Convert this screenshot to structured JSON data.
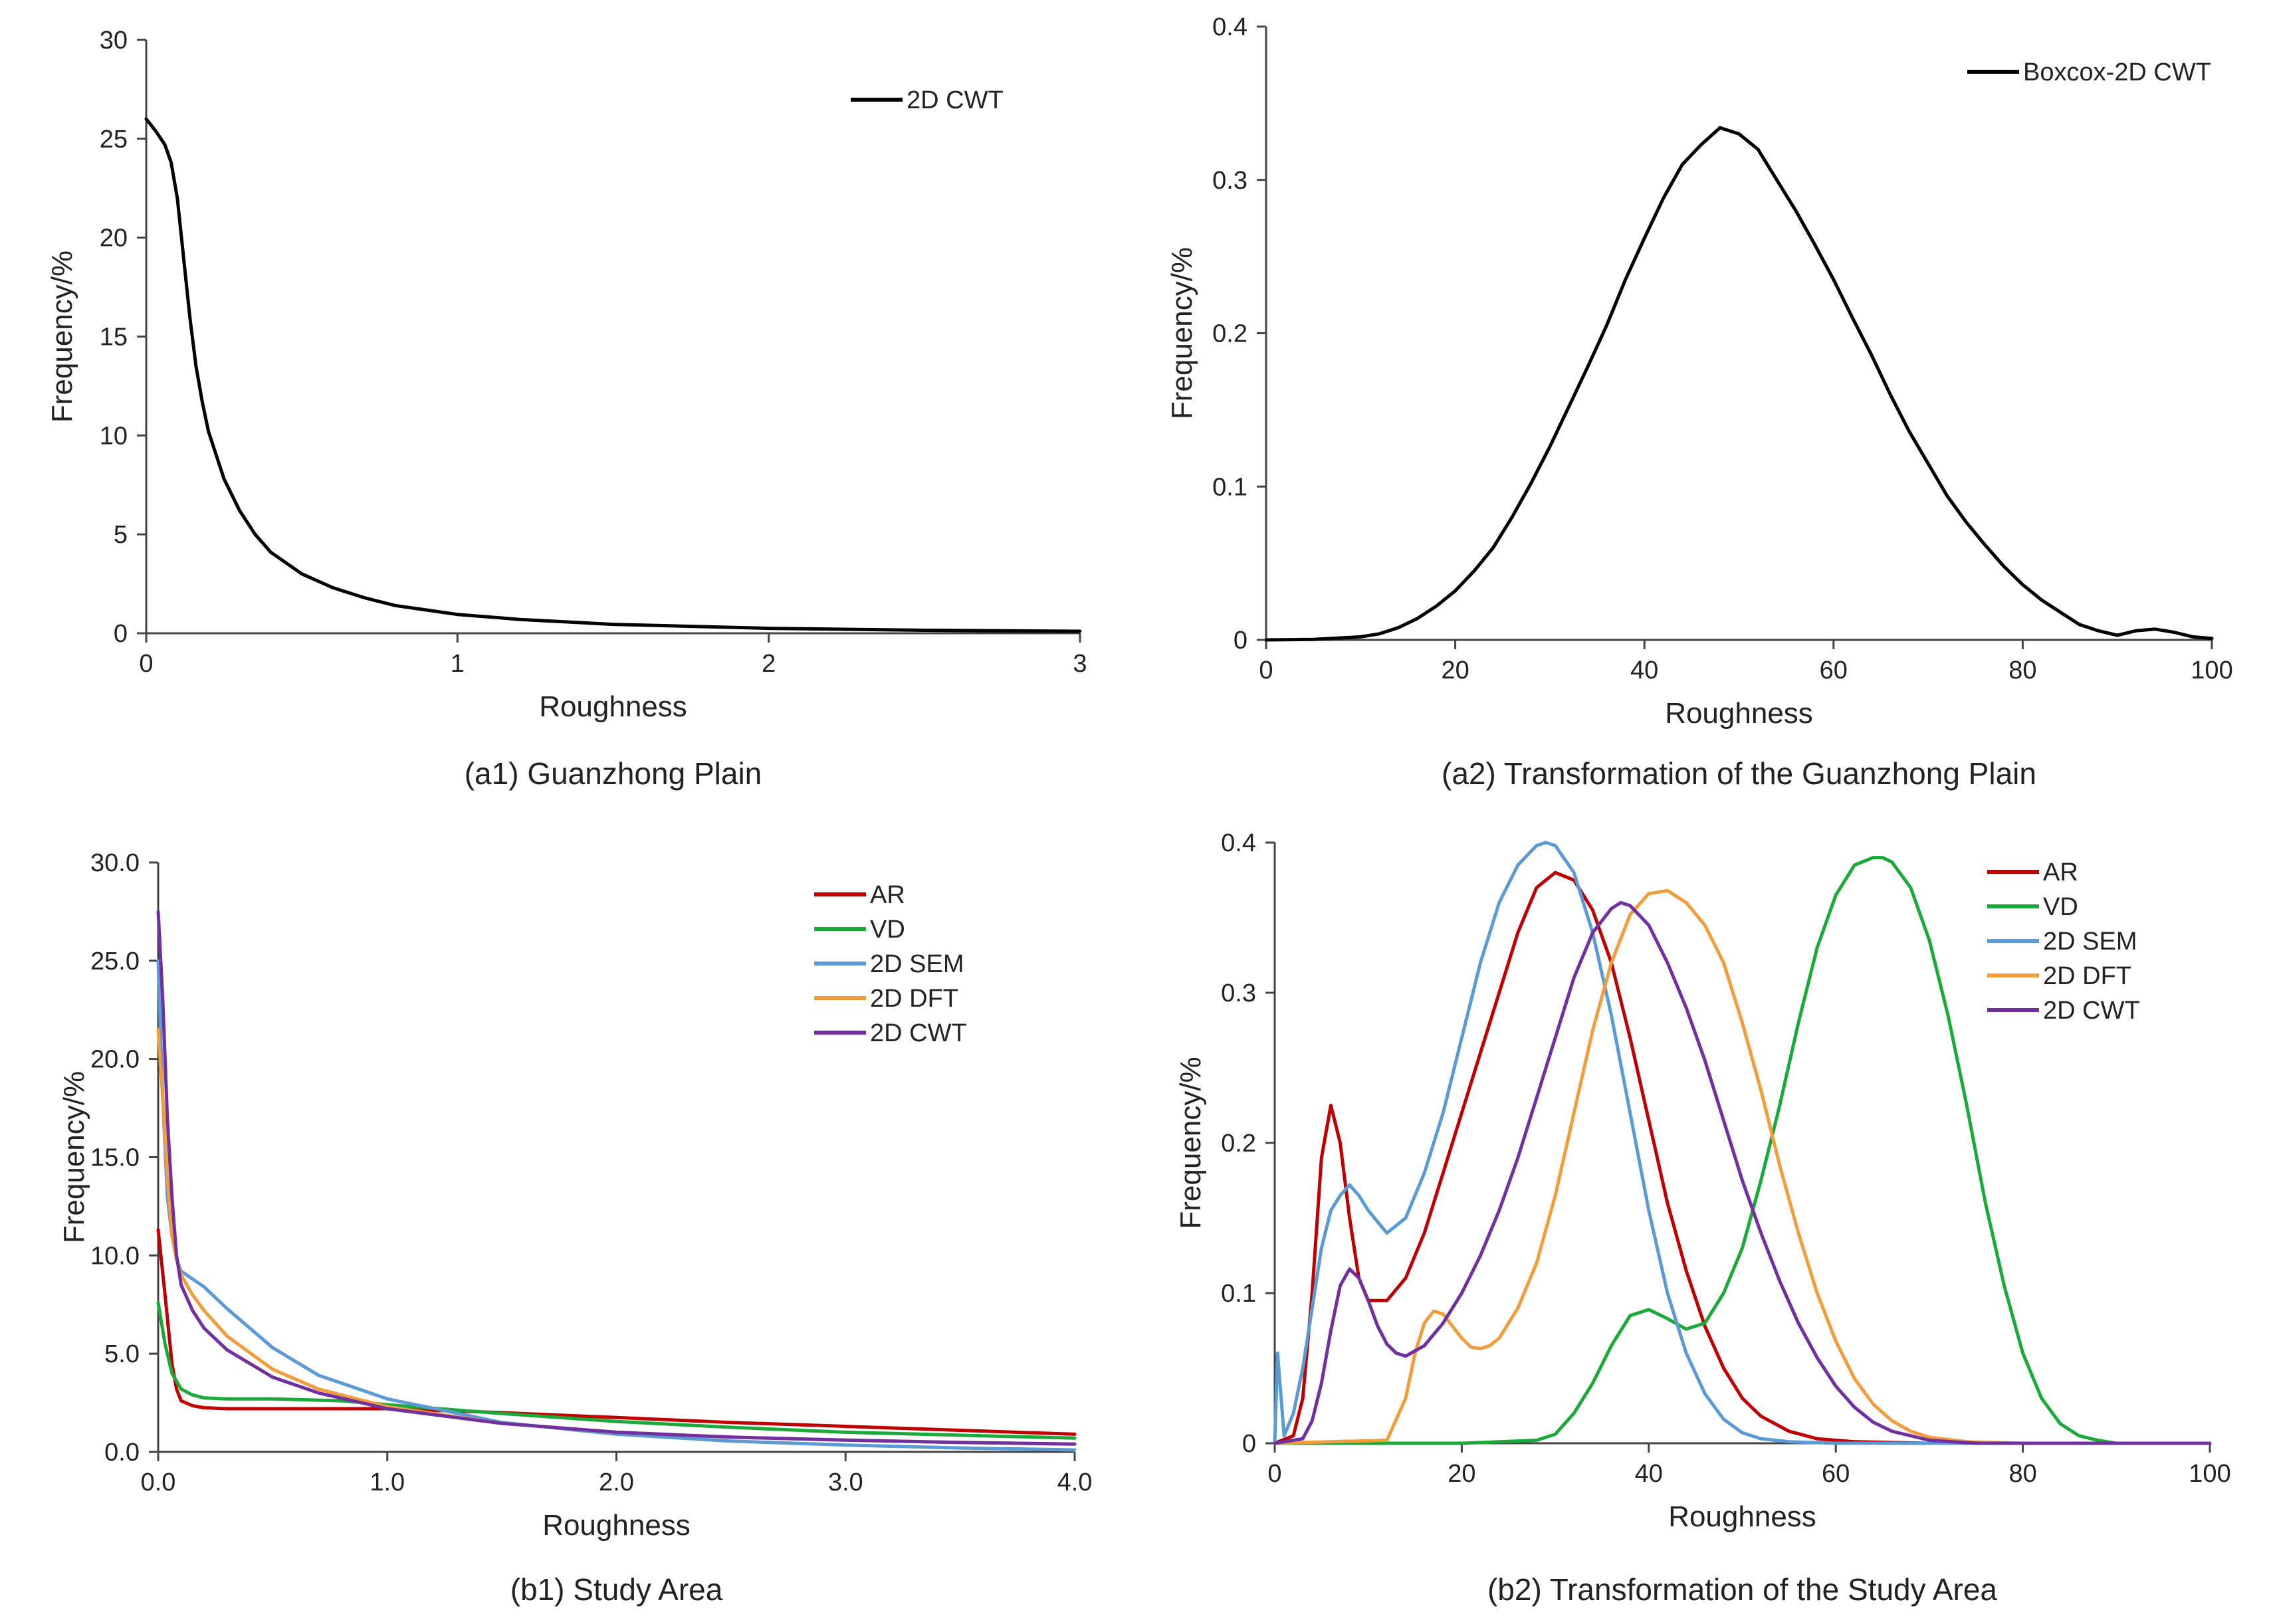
{
  "chart_data": [
    {
      "id": "a1",
      "type": "line",
      "caption": "(a1) Guanzhong Plain",
      "xlabel": "Roughness",
      "ylabel": "Frequency/%",
      "xlim": [
        0,
        3
      ],
      "ylim": [
        0,
        30
      ],
      "xticks": [
        "0",
        "1",
        "2",
        "3"
      ],
      "xtick_values": [
        0,
        1,
        2,
        3
      ],
      "yticks": [
        "0",
        "5",
        "10",
        "15",
        "20",
        "25",
        "30"
      ],
      "ytick_values": [
        0,
        5,
        10,
        15,
        20,
        25,
        30
      ],
      "legend_position": "top-right",
      "series": [
        {
          "name": "2D CWT",
          "color": "#000000",
          "x": [
            0,
            0.03,
            0.06,
            0.08,
            0.1,
            0.12,
            0.14,
            0.16,
            0.18,
            0.2,
            0.25,
            0.3,
            0.35,
            0.4,
            0.5,
            0.6,
            0.7,
            0.8,
            1.0,
            1.2,
            1.5,
            2.0,
            2.5,
            3.0
          ],
          "y": [
            26,
            25.4,
            24.7,
            23.8,
            22,
            19,
            16,
            13.5,
            11.7,
            10.2,
            7.8,
            6.2,
            5.0,
            4.1,
            3.0,
            2.3,
            1.8,
            1.4,
            0.95,
            0.7,
            0.45,
            0.25,
            0.15,
            0.1
          ]
        }
      ]
    },
    {
      "id": "a2",
      "type": "line",
      "caption": "(a2) Transformation of the Guanzhong Plain",
      "xlabel": "Roughness",
      "ylabel": "Frequency/%",
      "xlim": [
        0,
        100
      ],
      "ylim": [
        0,
        0.4
      ],
      "xticks": [
        "0",
        "20",
        "40",
        "60",
        "80",
        "100"
      ],
      "xtick_values": [
        0,
        20,
        40,
        60,
        80,
        100
      ],
      "yticks": [
        "0",
        "0.1",
        "0.2",
        "0.3",
        "0.4"
      ],
      "ytick_values": [
        0,
        0.1,
        0.2,
        0.3,
        0.4
      ],
      "legend_position": "top-right",
      "series": [
        {
          "name": "Boxcox-2D CWT",
          "color": "#000000",
          "x": [
            0,
            5,
            10,
            12,
            14,
            16,
            18,
            20,
            22,
            24,
            26,
            28,
            30,
            32,
            34,
            36,
            38,
            40,
            42,
            44,
            46,
            48,
            50,
            52,
            54,
            56,
            58,
            60,
            62,
            64,
            66,
            68,
            70,
            72,
            74,
            76,
            78,
            80,
            82,
            84,
            86,
            88,
            90,
            92,
            94,
            96,
            98,
            100
          ],
          "y": [
            0,
            0.0003,
            0.002,
            0.004,
            0.008,
            0.014,
            0.022,
            0.032,
            0.045,
            0.06,
            0.08,
            0.102,
            0.126,
            0.152,
            0.178,
            0.205,
            0.235,
            0.262,
            0.288,
            0.31,
            0.323,
            0.334,
            0.33,
            0.32,
            0.3,
            0.28,
            0.258,
            0.235,
            0.21,
            0.186,
            0.16,
            0.136,
            0.115,
            0.094,
            0.077,
            0.062,
            0.048,
            0.036,
            0.026,
            0.018,
            0.01,
            0.006,
            0.003,
            0.006,
            0.007,
            0.005,
            0.002,
            0.001
          ]
        }
      ]
    },
    {
      "id": "b1",
      "type": "line",
      "caption": "(b1) Study Area",
      "xlabel": "Roughness",
      "ylabel": "Frequency/%",
      "xlim": [
        0,
        4
      ],
      "ylim": [
        0,
        30
      ],
      "xticks": [
        "0.0",
        "1.0",
        "2.0",
        "3.0",
        "4.0"
      ],
      "xtick_values": [
        0,
        1,
        2,
        3,
        4
      ],
      "yticks": [
        "0.0",
        "5.0",
        "10.0",
        "15.0",
        "20.0",
        "25.0",
        "30.0"
      ],
      "ytick_values": [
        0,
        5,
        10,
        15,
        20,
        25,
        30
      ],
      "legend_position": "top-right",
      "series": [
        {
          "name": "AR",
          "color": "#C00000",
          "x": [
            0,
            0.03,
            0.06,
            0.08,
            0.1,
            0.15,
            0.2,
            0.3,
            0.5,
            0.8,
            1.0,
            1.5,
            2.0,
            2.5,
            3.0,
            3.5,
            4.0
          ],
          "y": [
            11.3,
            8,
            4.5,
            3.2,
            2.6,
            2.35,
            2.25,
            2.2,
            2.2,
            2.2,
            2.2,
            2.0,
            1.75,
            1.5,
            1.3,
            1.1,
            0.9
          ]
        },
        {
          "name": "VD",
          "color": "#1AAA3A",
          "x": [
            0,
            0.03,
            0.06,
            0.1,
            0.15,
            0.2,
            0.3,
            0.5,
            0.8,
            1.0,
            1.5,
            2.0,
            2.5,
            3.0,
            3.5,
            4.0
          ],
          "y": [
            7.6,
            5.5,
            4.0,
            3.2,
            2.9,
            2.75,
            2.7,
            2.7,
            2.6,
            2.4,
            1.95,
            1.55,
            1.25,
            1.0,
            0.85,
            0.7
          ]
        },
        {
          "name": "2D SEM",
          "color": "#5B9BD5",
          "x": [
            0,
            0.02,
            0.04,
            0.06,
            0.08,
            0.1,
            0.15,
            0.2,
            0.3,
            0.5,
            0.7,
            1.0,
            1.5,
            2.0,
            2.5,
            3.0,
            3.5,
            4.0
          ],
          "y": [
            25,
            18,
            13,
            11,
            9.8,
            9.2,
            8.8,
            8.4,
            7.3,
            5.3,
            3.9,
            2.7,
            1.5,
            0.9,
            0.55,
            0.35,
            0.2,
            0.1
          ]
        },
        {
          "name": "2D DFT",
          "color": "#F39C3C",
          "x": [
            0,
            0.02,
            0.04,
            0.06,
            0.08,
            0.1,
            0.15,
            0.2,
            0.3,
            0.5,
            0.7,
            1.0,
            1.5,
            2.0,
            2.5,
            3.0,
            3.5,
            4.0
          ],
          "y": [
            21.5,
            18,
            14,
            11,
            9.8,
            9.0,
            8.0,
            7.2,
            5.9,
            4.2,
            3.2,
            2.3,
            1.45,
            1.0,
            0.75,
            0.6,
            0.48,
            0.4
          ]
        },
        {
          "name": "2D CWT",
          "color": "#7030A0",
          "x": [
            0,
            0.02,
            0.04,
            0.06,
            0.08,
            0.1,
            0.15,
            0.2,
            0.3,
            0.5,
            0.7,
            1.0,
            1.5,
            2.0,
            2.5,
            3.0,
            3.5,
            4.0
          ],
          "y": [
            27.5,
            23,
            17,
            13,
            10,
            8.5,
            7.2,
            6.3,
            5.2,
            3.8,
            3.0,
            2.2,
            1.45,
            1.0,
            0.75,
            0.6,
            0.48,
            0.4
          ]
        }
      ]
    },
    {
      "id": "b2",
      "type": "line",
      "caption": "(b2) Transformation of the Study Area",
      "xlabel": "Roughness",
      "ylabel": "Frequency/%",
      "xlim": [
        0,
        100
      ],
      "ylim": [
        0,
        0.4
      ],
      "xticks": [
        "0",
        "20",
        "40",
        "60",
        "80",
        "100"
      ],
      "xtick_values": [
        0,
        20,
        40,
        60,
        80,
        100
      ],
      "yticks": [
        "0",
        "0.1",
        "0.2",
        "0.3",
        "0.4"
      ],
      "ytick_values": [
        0,
        0.1,
        0.2,
        0.3,
        0.4
      ],
      "legend_position": "top-right",
      "series": [
        {
          "name": "AR",
          "color": "#C00000",
          "x": [
            0,
            2,
            3,
            4,
            5,
            6,
            7,
            8,
            9,
            10,
            12,
            14,
            16,
            18,
            20,
            22,
            24,
            26,
            28,
            30,
            32,
            34,
            36,
            38,
            40,
            42,
            44,
            46,
            48,
            50,
            52,
            55,
            58,
            62,
            70,
            100
          ],
          "y": [
            0,
            0.005,
            0.03,
            0.1,
            0.19,
            0.225,
            0.2,
            0.15,
            0.11,
            0.095,
            0.095,
            0.11,
            0.14,
            0.18,
            0.22,
            0.26,
            0.3,
            0.34,
            0.37,
            0.38,
            0.375,
            0.355,
            0.32,
            0.27,
            0.215,
            0.16,
            0.115,
            0.078,
            0.05,
            0.03,
            0.018,
            0.008,
            0.003,
            0.001,
            0,
            0
          ]
        },
        {
          "name": "VD",
          "color": "#1AAA3A",
          "x": [
            0,
            20,
            28,
            30,
            32,
            34,
            36,
            38,
            40,
            42,
            44,
            46,
            48,
            50,
            52,
            54,
            56,
            58,
            60,
            62,
            64,
            65,
            66,
            68,
            70,
            72,
            74,
            76,
            78,
            80,
            82,
            84,
            86,
            88,
            90,
            100
          ],
          "y": [
            0,
            0,
            0.002,
            0.006,
            0.02,
            0.04,
            0.065,
            0.085,
            0.089,
            0.083,
            0.076,
            0.08,
            0.1,
            0.13,
            0.175,
            0.225,
            0.28,
            0.33,
            0.365,
            0.385,
            0.39,
            0.39,
            0.387,
            0.37,
            0.335,
            0.285,
            0.225,
            0.16,
            0.105,
            0.06,
            0.03,
            0.013,
            0.005,
            0.002,
            0,
            0
          ]
        },
        {
          "name": "2D SEM",
          "color": "#5B9BD5",
          "x": [
            0,
            0.3,
            1,
            2,
            3,
            4,
            5,
            6,
            7,
            8,
            9,
            10,
            12,
            14,
            16,
            18,
            20,
            22,
            24,
            26,
            28,
            29,
            30,
            32,
            34,
            36,
            38,
            40,
            42,
            44,
            46,
            48,
            50,
            52,
            55,
            60,
            100
          ],
          "y": [
            0,
            0.06,
            0.005,
            0.02,
            0.05,
            0.09,
            0.13,
            0.155,
            0.165,
            0.172,
            0.165,
            0.155,
            0.14,
            0.15,
            0.18,
            0.22,
            0.27,
            0.32,
            0.36,
            0.385,
            0.398,
            0.4,
            0.398,
            0.38,
            0.34,
            0.285,
            0.22,
            0.155,
            0.1,
            0.06,
            0.033,
            0.016,
            0.007,
            0.003,
            0.001,
            0,
            0
          ]
        },
        {
          "name": "2D DFT",
          "color": "#F39C3C",
          "x": [
            0,
            12,
            14,
            15,
            16,
            17,
            18,
            19,
            20,
            21,
            22,
            23,
            24,
            26,
            28,
            30,
            32,
            34,
            36,
            38,
            40,
            42,
            44,
            46,
            48,
            50,
            52,
            54,
            56,
            58,
            60,
            62,
            64,
            66,
            68,
            70,
            74,
            80,
            100
          ],
          "y": [
            0,
            0.002,
            0.03,
            0.06,
            0.08,
            0.088,
            0.086,
            0.078,
            0.07,
            0.064,
            0.063,
            0.065,
            0.07,
            0.09,
            0.12,
            0.165,
            0.22,
            0.275,
            0.32,
            0.352,
            0.366,
            0.368,
            0.36,
            0.345,
            0.32,
            0.28,
            0.235,
            0.185,
            0.14,
            0.1,
            0.068,
            0.043,
            0.026,
            0.015,
            0.008,
            0.004,
            0.001,
            0,
            0
          ]
        },
        {
          "name": "2D CWT",
          "color": "#7030A0",
          "x": [
            0,
            3,
            4,
            5,
            6,
            7,
            8,
            9,
            10,
            11,
            12,
            13,
            14,
            16,
            18,
            20,
            22,
            24,
            26,
            28,
            30,
            32,
            34,
            36,
            37,
            38,
            40,
            42,
            44,
            46,
            48,
            50,
            52,
            54,
            56,
            58,
            60,
            62,
            64,
            66,
            70,
            75,
            100
          ],
          "y": [
            0,
            0.003,
            0.015,
            0.04,
            0.075,
            0.105,
            0.116,
            0.11,
            0.095,
            0.078,
            0.066,
            0.06,
            0.058,
            0.065,
            0.08,
            0.1,
            0.125,
            0.155,
            0.19,
            0.23,
            0.27,
            0.31,
            0.34,
            0.356,
            0.36,
            0.358,
            0.345,
            0.32,
            0.29,
            0.255,
            0.215,
            0.175,
            0.14,
            0.108,
            0.08,
            0.057,
            0.038,
            0.024,
            0.014,
            0.008,
            0.002,
            0,
            0
          ]
        }
      ]
    }
  ]
}
